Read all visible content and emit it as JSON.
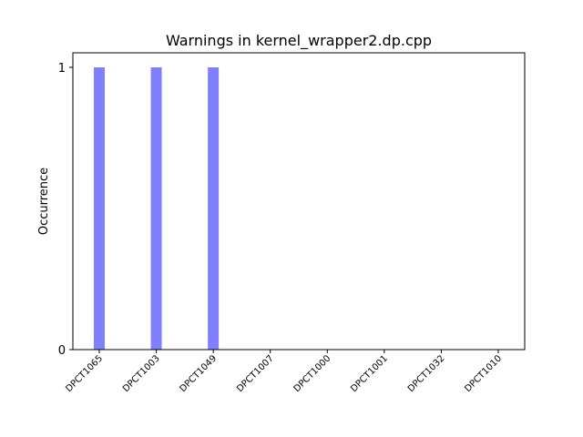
{
  "chart_data": {
    "type": "bar",
    "title": "Warnings in kernel_wrapper2.dp.cpp",
    "xlabel": "",
    "ylabel": "Occurrence",
    "categories": [
      "DPCT1065",
      "DPCT1003",
      "DPCT1049",
      "DPCT1007",
      "DPCT1000",
      "DPCT1001",
      "DPCT1032",
      "DPCT1010"
    ],
    "values": [
      1,
      1,
      1,
      0,
      0,
      0,
      0,
      0
    ],
    "ylim": [
      0,
      1
    ],
    "yticks": [
      0,
      1
    ],
    "bar_color": "#8080ff",
    "grid": false,
    "legend": "none"
  }
}
